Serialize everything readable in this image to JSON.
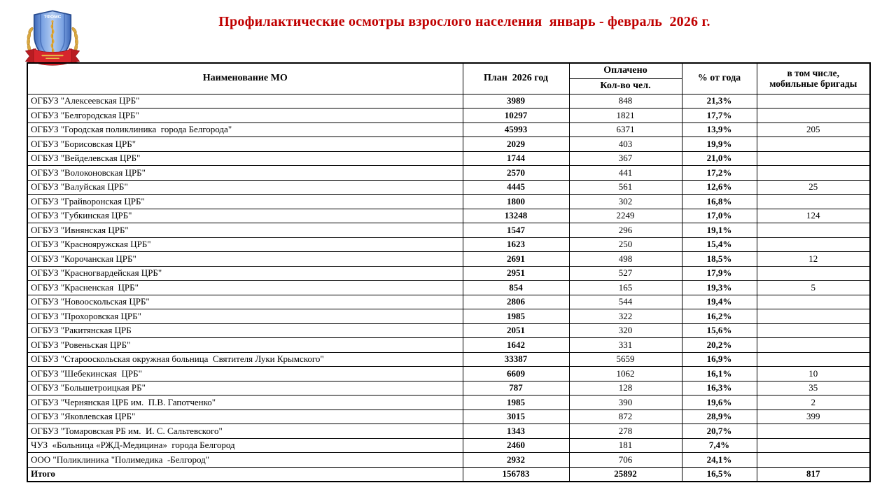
{
  "page": {
    "title": "Профилактические осмотры взрослого населения  январь - февраль  2026 г.",
    "title_color": "#c00000"
  },
  "logo": {
    "shield_text": "ТФОМС",
    "shield_color": "#5d8ad6",
    "ribbon_color": "#d6252c",
    "laurel_color": "#d9a940"
  },
  "table": {
    "headers": {
      "name": "Наименование МО",
      "plan": "План  2026 год",
      "paid_group": "Оплачено",
      "paid_sub": "Кол-во чел.",
      "percent": "% от года",
      "mobile_line1": "в том числе,",
      "mobile_line2": "мобильные бригады"
    },
    "rows": [
      {
        "name": "ОГБУЗ \"Алексеевская ЦРБ\"",
        "plan": "3989",
        "paid": "848",
        "percent": "21,3%",
        "mobile": ""
      },
      {
        "name": "ОГБУЗ \"Белгородская ЦРБ\"",
        "plan": "10297",
        "paid": "1821",
        "percent": "17,7%",
        "mobile": ""
      },
      {
        "name": "ОГБУЗ \"Городская поликлиника  города Белгорода\"",
        "plan": "45993",
        "paid": "6371",
        "percent": "13,9%",
        "mobile": "205"
      },
      {
        "name": "ОГБУЗ \"Борисовская ЦРБ\"",
        "plan": "2029",
        "paid": "403",
        "percent": "19,9%",
        "mobile": ""
      },
      {
        "name": "ОГБУЗ \"Вейделевская ЦРБ\"",
        "plan": "1744",
        "paid": "367",
        "percent": "21,0%",
        "mobile": ""
      },
      {
        "name": "ОГБУЗ \"Волоконовская ЦРБ\"",
        "plan": "2570",
        "paid": "441",
        "percent": "17,2%",
        "mobile": ""
      },
      {
        "name": "ОГБУЗ \"Валуйская ЦРБ\"",
        "plan": "4445",
        "paid": "561",
        "percent": "12,6%",
        "mobile": "25"
      },
      {
        "name": "ОГБУЗ \"Грайворонская ЦРБ\"",
        "plan": "1800",
        "paid": "302",
        "percent": "16,8%",
        "mobile": ""
      },
      {
        "name": "ОГБУЗ \"Губкинская ЦРБ\"",
        "plan": "13248",
        "paid": "2249",
        "percent": "17,0%",
        "mobile": "124"
      },
      {
        "name": "ОГБУЗ \"Ивнянская ЦРБ\"",
        "plan": "1547",
        "paid": "296",
        "percent": "19,1%",
        "mobile": ""
      },
      {
        "name": "ОГБУЗ \"Краснояружская ЦРБ\"",
        "plan": "1623",
        "paid": "250",
        "percent": "15,4%",
        "mobile": ""
      },
      {
        "name": "ОГБУЗ \"Корочанская ЦРБ\"",
        "plan": "2691",
        "paid": "498",
        "percent": "18,5%",
        "mobile": "12"
      },
      {
        "name": "ОГБУЗ \"Красногвардейская ЦРБ\"",
        "plan": "2951",
        "paid": "527",
        "percent": "17,9%",
        "mobile": ""
      },
      {
        "name": "ОГБУЗ \"Красненская  ЦРБ\"",
        "plan": "854",
        "paid": "165",
        "percent": "19,3%",
        "mobile": "5"
      },
      {
        "name": "ОГБУЗ \"Новооскольская ЦРБ\"",
        "plan": "2806",
        "paid": "544",
        "percent": "19,4%",
        "mobile": ""
      },
      {
        "name": "ОГБУЗ \"Прохоровская ЦРБ\"",
        "plan": "1985",
        "paid": "322",
        "percent": "16,2%",
        "mobile": ""
      },
      {
        "name": "ОГБУЗ \"Ракитянская ЦРБ",
        "plan": "2051",
        "paid": "320",
        "percent": "15,6%",
        "mobile": ""
      },
      {
        "name": "ОГБУЗ \"Ровеньская ЦРБ\"",
        "plan": "1642",
        "paid": "331",
        "percent": "20,2%",
        "mobile": ""
      },
      {
        "name": "ОГБУЗ \"Старооскольская окружная больница  Святителя Луки Крымского\"",
        "plan": "33387",
        "paid": "5659",
        "percent": "16,9%",
        "mobile": ""
      },
      {
        "name": "ОГБУЗ \"Шебекинская  ЦРБ\"",
        "plan": "6609",
        "paid": "1062",
        "percent": "16,1%",
        "mobile": "10"
      },
      {
        "name": "ОГБУЗ \"Большетроицкая РБ\"",
        "plan": "787",
        "paid": "128",
        "percent": "16,3%",
        "mobile": "35"
      },
      {
        "name": "ОГБУЗ \"Чернянская ЦРБ им.  П.В. Гапотченко\"",
        "plan": "1985",
        "paid": "390",
        "percent": "19,6%",
        "mobile": "2"
      },
      {
        "name": "ОГБУЗ \"Яковлевская ЦРБ\"",
        "plan": "3015",
        "paid": "872",
        "percent": "28,9%",
        "mobile": "399"
      },
      {
        "name": "ОГБУЗ \"Томаровская РБ им.  И. С. Сальтевского\"",
        "plan": "1343",
        "paid": "278",
        "percent": "20,7%",
        "mobile": ""
      },
      {
        "name": "ЧУЗ  «Больница «РЖД-Медицина»  города Белгород",
        "plan": "2460",
        "paid": "181",
        "percent": "7,4%",
        "mobile": ""
      },
      {
        "name": "ООО \"Поликлиника \"Полимедика  -Белгород\"",
        "plan": "2932",
        "paid": "706",
        "percent": "24,1%",
        "mobile": ""
      },
      {
        "name": "Итого",
        "plan": "156783",
        "paid": "25892",
        "percent": "16,5%",
        "mobile": "817",
        "is_total": true
      }
    ]
  }
}
